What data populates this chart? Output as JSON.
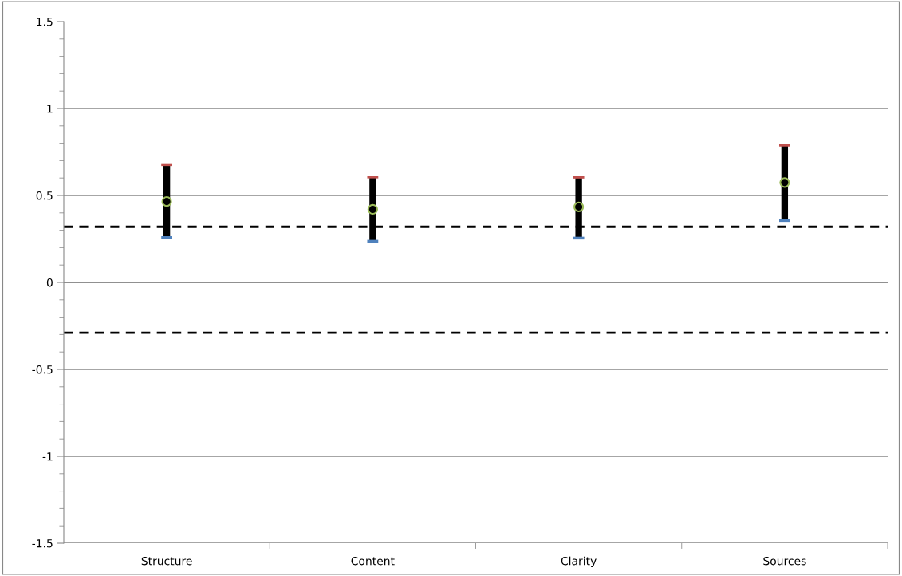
{
  "chart_data": {
    "type": "scatter",
    "categories": [
      "Structure",
      "Content",
      "Clarity",
      "Sources"
    ],
    "series": [
      {
        "color": "#000000",
        "values": [
          0.465,
          0.42,
          0.434,
          0.574
        ],
        "errors": [
          [
            0.258,
            0.677
          ],
          [
            0.237,
            0.606
          ],
          [
            0.255,
            0.605
          ],
          [
            0.356,
            0.789
          ]
        ]
      }
    ],
    "ylim": [
      -1.5,
      1.5
    ],
    "yticks": [
      -1.5,
      -1,
      -0.5,
      0,
      0.5,
      1,
      1.5
    ],
    "ref_lines": [
      {
        "axis": "y",
        "value": 0.32,
        "line_style": "dashed",
        "color": "#000000"
      },
      {
        "axis": "y",
        "value": -0.29,
        "line_style": "dashed",
        "color": "#000000"
      }
    ],
    "grid": "y",
    "marker": "circle",
    "legend": false
  }
}
